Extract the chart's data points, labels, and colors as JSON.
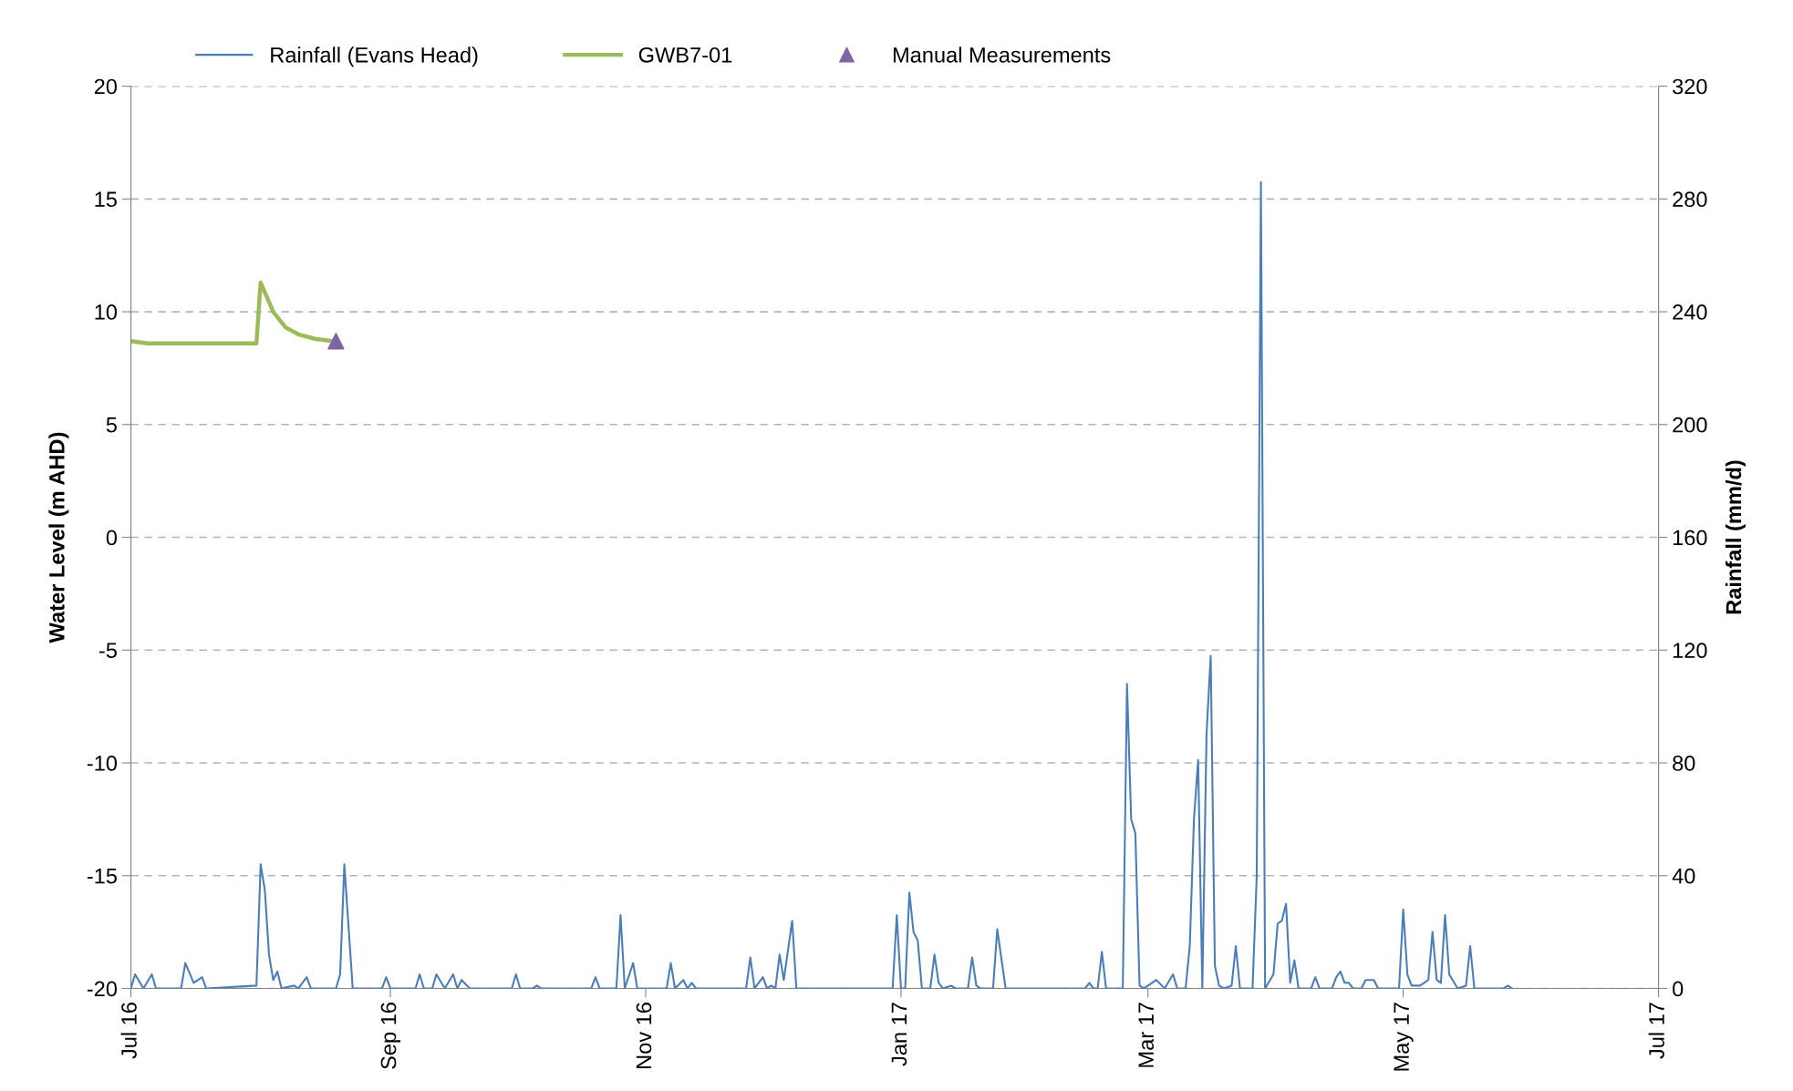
{
  "chart_data": {
    "type": "line",
    "ylabel": "Water Level (m AHD)",
    "y2label": "Rainfall (mm/d)",
    "legend": "top",
    "grid": "y",
    "xlim": [
      "2016-07-01",
      "2017-07-01"
    ],
    "xticks": [
      {
        "value": "2016-07-01",
        "label": "Jul 16"
      },
      {
        "value": "2016-09-01",
        "label": "Sep 16"
      },
      {
        "value": "2016-11-01",
        "label": "Nov 16"
      },
      {
        "value": "2017-01-01",
        "label": "Jan 17"
      },
      {
        "value": "2017-03-01",
        "label": "Mar 17"
      },
      {
        "value": "2017-05-01",
        "label": "May 17"
      },
      {
        "value": "2017-07-01",
        "label": "Jul 17"
      }
    ],
    "ylim": [
      -20,
      20
    ],
    "yticks": [
      -20,
      -15,
      -10,
      -5,
      0,
      5,
      10,
      15,
      20
    ],
    "y2lim": [
      0,
      320
    ],
    "y2ticks": [
      0,
      40,
      80,
      120,
      160,
      200,
      240,
      280,
      320
    ],
    "series": [
      {
        "name": "Rainfall (Evans Head)",
        "axis": "y2",
        "color": "#4a7ebb",
        "marker": "none",
        "x": [
          "2016-07-01",
          "2016-07-02",
          "2016-07-04",
          "2016-07-06",
          "2016-07-07",
          "2016-07-13",
          "2016-07-14",
          "2016-07-16",
          "2016-07-18",
          "2016-07-19",
          "2016-07-31",
          "2016-08-01",
          "2016-08-02",
          "2016-08-03",
          "2016-08-04",
          "2016-08-05",
          "2016-08-06",
          "2016-08-09",
          "2016-08-10",
          "2016-08-12",
          "2016-08-13",
          "2016-08-19",
          "2016-08-20",
          "2016-08-21",
          "2016-08-23",
          "2016-08-30",
          "2016-08-31",
          "2016-09-01",
          "2016-09-07",
          "2016-09-08",
          "2016-09-09",
          "2016-09-11",
          "2016-09-12",
          "2016-09-14",
          "2016-09-16",
          "2016-09-17",
          "2016-09-18",
          "2016-09-20",
          "2016-09-30",
          "2016-10-01",
          "2016-10-02",
          "2016-10-05",
          "2016-10-06",
          "2016-10-07",
          "2016-10-19",
          "2016-10-20",
          "2016-10-21",
          "2016-10-25",
          "2016-10-26",
          "2016-10-27",
          "2016-10-29",
          "2016-10-30",
          "2016-11-06",
          "2016-11-07",
          "2016-11-08",
          "2016-11-10",
          "2016-11-11",
          "2016-11-12",
          "2016-11-13",
          "2016-11-25",
          "2016-11-26",
          "2016-11-27",
          "2016-11-29",
          "2016-11-30",
          "2016-12-01",
          "2016-12-02",
          "2016-12-03",
          "2016-12-04",
          "2016-12-06",
          "2016-12-07",
          "2016-12-30",
          "2016-12-31",
          "2017-01-01",
          "2017-01-02",
          "2017-01-03",
          "2017-01-04",
          "2017-01-05",
          "2017-01-06",
          "2017-01-08",
          "2017-01-09",
          "2017-01-10",
          "2017-01-11",
          "2017-01-13",
          "2017-01-14",
          "2017-01-17",
          "2017-01-18",
          "2017-01-19",
          "2017-01-20",
          "2017-01-23",
          "2017-01-24",
          "2017-01-26",
          "2017-02-14",
          "2017-02-15",
          "2017-02-16",
          "2017-02-17",
          "2017-02-18",
          "2017-02-19",
          "2017-02-23",
          "2017-02-24",
          "2017-02-25",
          "2017-02-26",
          "2017-02-27",
          "2017-02-28",
          "2017-03-02",
          "2017-03-03",
          "2017-03-05",
          "2017-03-07",
          "2017-03-08",
          "2017-03-10",
          "2017-03-11",
          "2017-03-12",
          "2017-03-13",
          "2017-03-14",
          "2017-03-15",
          "2017-03-16",
          "2017-03-17",
          "2017-03-18",
          "2017-03-19",
          "2017-03-21",
          "2017-03-22",
          "2017-03-23",
          "2017-03-26",
          "2017-03-27",
          "2017-03-28",
          "2017-03-29",
          "2017-03-31",
          "2017-04-01",
          "2017-04-02",
          "2017-04-03",
          "2017-04-04",
          "2017-04-05",
          "2017-04-06",
          "2017-04-09",
          "2017-04-10",
          "2017-04-11",
          "2017-04-14",
          "2017-04-15",
          "2017-04-16",
          "2017-04-17",
          "2017-04-18",
          "2017-04-19",
          "2017-04-21",
          "2017-04-22",
          "2017-04-24",
          "2017-04-25",
          "2017-04-30",
          "2017-05-01",
          "2017-05-02",
          "2017-05-03",
          "2017-05-05",
          "2017-05-06",
          "2017-05-07",
          "2017-05-08",
          "2017-05-09",
          "2017-05-10",
          "2017-05-11",
          "2017-05-12",
          "2017-05-14",
          "2017-05-16",
          "2017-05-17",
          "2017-05-18",
          "2017-05-25",
          "2017-05-26",
          "2017-05-27"
        ],
        "values": [
          0,
          5,
          0,
          5,
          0,
          0,
          9,
          2,
          4,
          0,
          1,
          44,
          35,
          12,
          3,
          6,
          0,
          1,
          0,
          4,
          0,
          0,
          5,
          44,
          0,
          0,
          4,
          0,
          0,
          5,
          0,
          0,
          5,
          0,
          5,
          0,
          3,
          0,
          0,
          5,
          0,
          0,
          1,
          0,
          0,
          4,
          0,
          0,
          26,
          0,
          9,
          0,
          0,
          9,
          0,
          3,
          0,
          2,
          0,
          0,
          11,
          0,
          4,
          0,
          1,
          0,
          12,
          3,
          24,
          0,
          0,
          26,
          0,
          0,
          34,
          20,
          17,
          0,
          0,
          12,
          2,
          0,
          1,
          0,
          0,
          11,
          1,
          0,
          0,
          21,
          0,
          0,
          2,
          0,
          0,
          13,
          0,
          0,
          108,
          60,
          55,
          1,
          0,
          2,
          3,
          0,
          5,
          0,
          0,
          15,
          60,
          81,
          0,
          90,
          118,
          8,
          1,
          0,
          1,
          15,
          0,
          0,
          40,
          286,
          0,
          5,
          23,
          24,
          30,
          2,
          10,
          0,
          0,
          4,
          0,
          0,
          4,
          6,
          2,
          2,
          0,
          0,
          3,
          3,
          0,
          0,
          28,
          5,
          1,
          1,
          2,
          3,
          20,
          3,
          2,
          26,
          5,
          0,
          1,
          15,
          0,
          0,
          1,
          0
        ]
      },
      {
        "name": "GWB7-01",
        "color": "#9bbb59",
        "marker": "none",
        "x": [
          "2016-07-01",
          "2016-07-05",
          "2016-07-31",
          "2016-08-01",
          "2016-08-04",
          "2016-08-07",
          "2016-08-10",
          "2016-08-14",
          "2016-08-18"
        ],
        "values": [
          8.7,
          8.6,
          8.6,
          11.3,
          10.0,
          9.3,
          9.0,
          8.8,
          8.7
        ]
      },
      {
        "name": "Manual Measurements",
        "type": "scatter",
        "color": "#8064a2",
        "marker": "triangle",
        "x": [
          "2016-08-19"
        ],
        "values": [
          8.7
        ]
      }
    ]
  }
}
